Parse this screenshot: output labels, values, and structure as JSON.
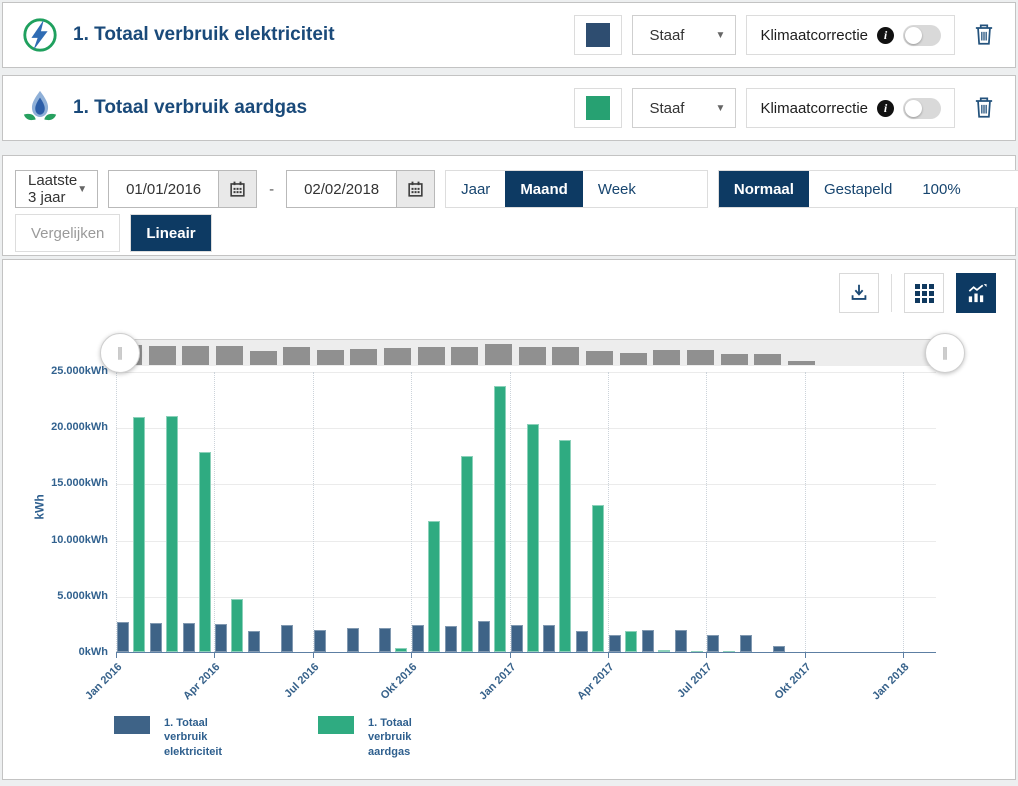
{
  "header_rows": [
    {
      "title": "1. Totaal verbruik elektriciteit",
      "icon": "electricity-icon",
      "series_color": "#2e4d70",
      "chart_type_value": "Staaf",
      "climate_label": "Klimaatcorrectie",
      "climate_toggle_on": false
    },
    {
      "title": "1. Totaal verbruik aardgas",
      "icon": "gas-icon",
      "series_color": "#27a172",
      "chart_type_value": "Staaf",
      "climate_label": "Klimaatcorrectie",
      "climate_toggle_on": false
    }
  ],
  "toolbar": {
    "range_preset": "Laatste 3 jaar",
    "date_from": "01/01/2016",
    "date_separator": "-",
    "date_to": "02/02/2018",
    "period_options": [
      {
        "label": "Jaar",
        "active": false
      },
      {
        "label": "Maand",
        "active": true
      },
      {
        "label": "Week",
        "active": false
      }
    ],
    "stack_options": [
      {
        "label": "Normaal",
        "active": true
      },
      {
        "label": "Gestapeld",
        "active": false
      },
      {
        "label": "100%",
        "active": false
      }
    ],
    "compare_label": "Vergelijken",
    "scale_label": "Lineair"
  },
  "ui_colors": {
    "accent_navy": "#0d3a63",
    "title_navy": "#1a4a7a",
    "navigator_bar_gray": "#909090"
  },
  "icons": [
    "electricity-icon",
    "gas-icon",
    "dropdown-caret-icon",
    "calendar-icon",
    "info-icon",
    "trash-icon",
    "download-icon",
    "table-view-icon",
    "chart-view-icon",
    "range-handle-icon"
  ],
  "chart_data": {
    "type": "bar",
    "title": "",
    "xlabel": "",
    "ylabel": "kWh",
    "ylim": [
      0,
      25000
    ],
    "grid": true,
    "legend_position": "bottom",
    "yticks": [
      "0kWh",
      "5.000kWh",
      "10.000kWh",
      "15.000kWh",
      "20.000kWh",
      "25.000kWh"
    ],
    "categories": [
      "Jan 2016",
      "Feb 2016",
      "Mrt 2016",
      "Apr 2016",
      "Mei 2016",
      "Jun 2016",
      "Jul 2016",
      "Aug 2016",
      "Sep 2016",
      "Okt 2016",
      "Nov 2016",
      "Dec 2016",
      "Jan 2017",
      "Feb 2017",
      "Mrt 2017",
      "Apr 2017",
      "Mei 2017",
      "Jun 2017",
      "Jul 2017",
      "Aug 2017",
      "Sep 2017",
      "Okt 2017",
      "Nov 2017",
      "Dec 2017",
      "Jan 2018"
    ],
    "xtick_positions": [
      0,
      3,
      6,
      9,
      12,
      15,
      18,
      21,
      24
    ],
    "xtick_labels": [
      "Jan 2016",
      "Apr 2016",
      "Jul 2016",
      "Okt 2016",
      "Jan 2017",
      "Apr 2017",
      "Jul 2017",
      "Okt 2017",
      "Jan 2018"
    ],
    "series": [
      {
        "name": "1. Totaal verbruik elektriciteit",
        "color": "#3e6387",
        "values": [
          2650,
          2550,
          2550,
          2450,
          1870,
          2400,
          1960,
          2150,
          2170,
          2380,
          2320,
          2750,
          2380,
          2380,
          1890,
          1550,
          2000,
          1960,
          1470,
          1500,
          540,
          0,
          0,
          0,
          0
        ]
      },
      {
        "name": "1. Totaal verbruik aardgas",
        "color": "#2fab81",
        "values": [
          20900,
          21000,
          17800,
          4700,
          0,
          0,
          0,
          0,
          350,
          11700,
          17400,
          23700,
          20300,
          18900,
          13100,
          1850,
          150,
          60,
          60,
          0,
          0,
          0,
          0,
          0,
          0
        ]
      }
    ]
  }
}
